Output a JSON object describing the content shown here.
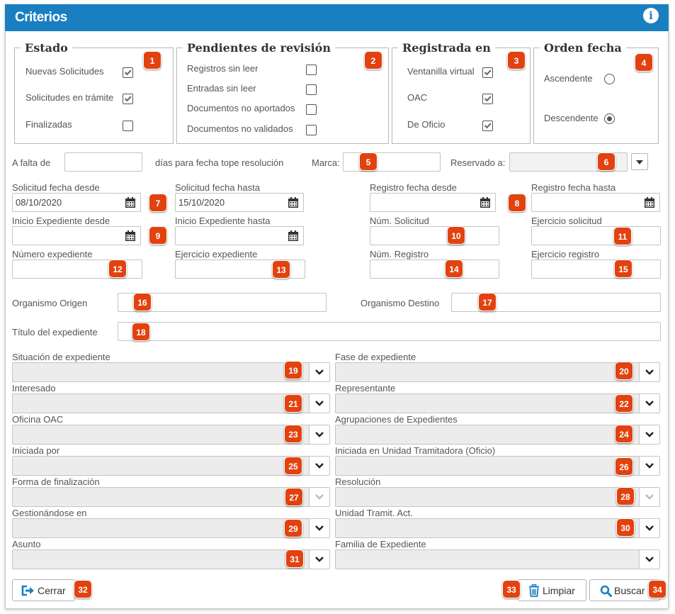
{
  "window": {
    "title": "Criterios"
  },
  "groups": {
    "estado": {
      "legend": "Estado",
      "options": [
        {
          "label": "Nuevas Solicitudes",
          "checked": true
        },
        {
          "label": "Solicitudes en trámite",
          "checked": true
        },
        {
          "label": "Finalizadas",
          "checked": false
        }
      ]
    },
    "pendientes": {
      "legend": "Pendientes de revisión",
      "options": [
        {
          "label": "Registros sin leer",
          "checked": false
        },
        {
          "label": "Entradas sin leer",
          "checked": false
        },
        {
          "label": "Documentos no aportados",
          "checked": false
        },
        {
          "label": "Documentos no validados",
          "checked": false
        }
      ]
    },
    "registrada": {
      "legend": "Registrada en",
      "options": [
        {
          "label": "Ventanilla virtual",
          "checked": true
        },
        {
          "label": "OAC",
          "checked": true
        },
        {
          "label": "De Oficio",
          "checked": true
        }
      ]
    },
    "orden": {
      "legend": "Orden fecha",
      "options": [
        {
          "label": "Ascendente",
          "selected": false
        },
        {
          "label": "Descendente",
          "selected": true
        }
      ]
    }
  },
  "fields": {
    "a_falta_de": "A falta de",
    "dias_tope": "días para fecha tope resolución",
    "marca": "Marca:",
    "reservado": "Reservado a:",
    "sol_desde": {
      "label": "Solicitud fecha desde",
      "value": "08/10/2020"
    },
    "sol_hasta": {
      "label": "Solicitud fecha hasta",
      "value": "15/10/2020"
    },
    "reg_desde": {
      "label": "Registro fecha desde",
      "value": ""
    },
    "reg_hasta": {
      "label": "Registro fecha hasta",
      "value": ""
    },
    "ini_desde": {
      "label": "Inicio Expediente desde",
      "value": ""
    },
    "ini_hasta": {
      "label": "Inicio Expediente hasta",
      "value": ""
    },
    "num_solicitud": "Núm. Solicitud",
    "ejercicio_solicitud": "Ejercicio solicitud",
    "numero_expediente": "Número expediente",
    "ejercicio_expediente": "Ejercicio expediente",
    "num_registro": "Núm. Registro",
    "ejercicio_registro": "Ejercicio registro",
    "organismo_origen": "Organismo Origen",
    "organismo_destino": "Organismo Destino",
    "titulo_expediente": "Título del expediente"
  },
  "selects": [
    {
      "label": "Situación de expediente",
      "disabled": false
    },
    {
      "label": "Fase de expediente",
      "disabled": false
    },
    {
      "label": "Interesado",
      "disabled": false
    },
    {
      "label": "Representante",
      "disabled": false
    },
    {
      "label": "Oficina OAC",
      "disabled": false
    },
    {
      "label": "Agrupaciones de Expedientes",
      "disabled": false
    },
    {
      "label": "Iniciada por",
      "disabled": false
    },
    {
      "label": "Iniciada en Unidad Tramitadora (Oficio)",
      "disabled": false
    },
    {
      "label": "Forma de finalización",
      "disabled": true
    },
    {
      "label": "Resolución",
      "disabled": true
    },
    {
      "label": "Gestionándose en",
      "disabled": false
    },
    {
      "label": "Unidad Tramit. Act.",
      "disabled": false
    },
    {
      "label": "Asunto",
      "disabled": false
    },
    {
      "label": "Familia de Expediente",
      "disabled": false
    }
  ],
  "buttons": {
    "cerrar": "Cerrar",
    "limpiar": "Limpiar",
    "buscar": "Buscar"
  },
  "badges": [
    "1",
    "2",
    "3",
    "4",
    "5",
    "6",
    "7",
    "8",
    "9",
    "10",
    "11",
    "12",
    "13",
    "14",
    "15",
    "16",
    "17",
    "18",
    "19",
    "20",
    "21",
    "22",
    "23",
    "24",
    "25",
    "26",
    "27",
    "28",
    "29",
    "30",
    "31",
    "32",
    "33",
    "34"
  ],
  "colors": {
    "header": "#1a7fc1",
    "badge": "#e2420f",
    "icon_blue": "#1a7fc1"
  }
}
